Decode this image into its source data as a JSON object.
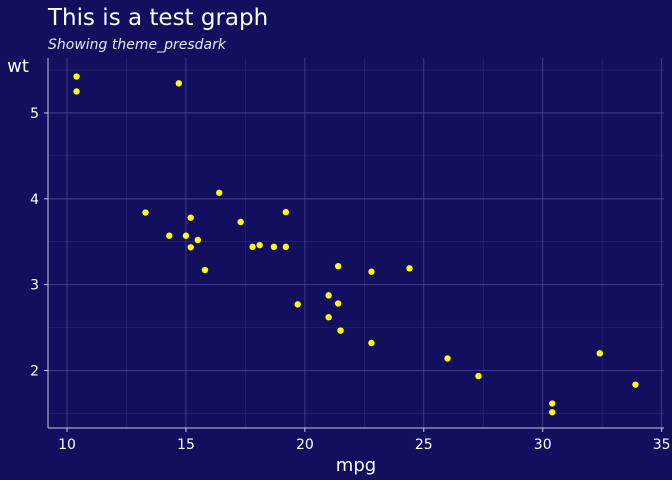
{
  "chart_data": {
    "type": "scatter",
    "title": "This is a test graph",
    "subtitle": "Showing theme_presdark",
    "xlabel": "mpg",
    "ylabel": "wt",
    "xlim": [
      9.2,
      35.1
    ],
    "ylim": [
      1.33,
      5.64
    ],
    "xticks": [
      10,
      15,
      20,
      25,
      30,
      35
    ],
    "yticks": [
      2,
      3,
      4,
      5
    ],
    "grid": true,
    "point_color": "#ffff00",
    "background_color": "#120f5e",
    "x": [
      21.0,
      21.0,
      22.8,
      21.4,
      18.7,
      18.1,
      14.3,
      24.4,
      22.8,
      19.2,
      17.8,
      16.4,
      17.3,
      15.2,
      10.4,
      10.4,
      14.7,
      32.4,
      30.4,
      33.9,
      21.5,
      15.5,
      15.2,
      13.3,
      19.2,
      27.3,
      26.0,
      30.4,
      15.8,
      19.7,
      15.0,
      21.4
    ],
    "y": [
      2.62,
      2.875,
      2.32,
      3.215,
      3.44,
      3.46,
      3.57,
      3.19,
      3.15,
      3.44,
      3.44,
      4.07,
      3.73,
      3.78,
      5.25,
      5.424,
      5.345,
      2.2,
      1.615,
      1.835,
      2.465,
      3.52,
      3.435,
      3.84,
      3.845,
      1.935,
      2.14,
      1.513,
      3.17,
      2.77,
      3.57,
      2.78
    ]
  }
}
